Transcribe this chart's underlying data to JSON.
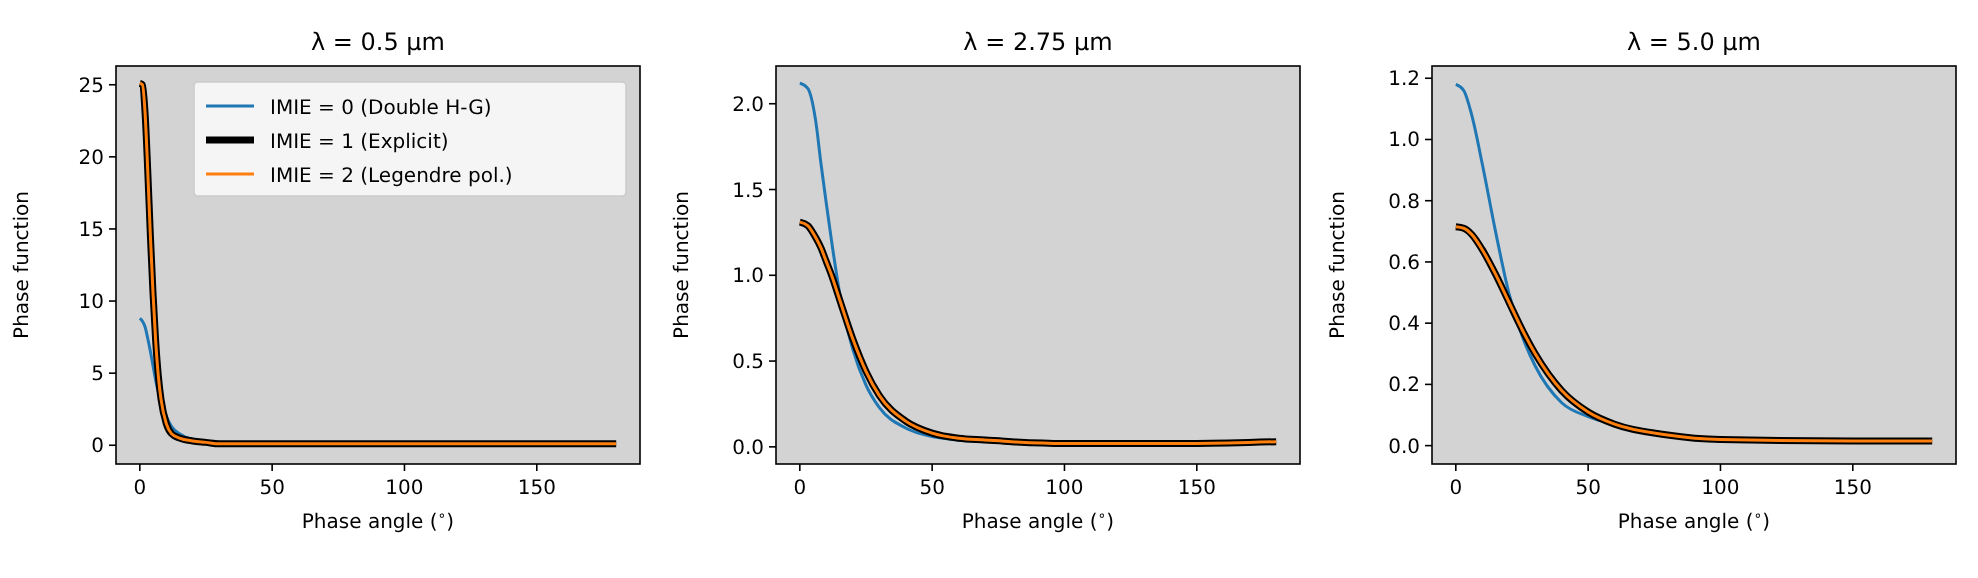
{
  "chart_data": [
    {
      "type": "line",
      "title": "λ = 0.5 μm",
      "xlabel": "Phase angle ($^{∘}$)",
      "ylabel": "Phase function",
      "xlim": [
        -9,
        189
      ],
      "ylim": [
        -1.3,
        26.3
      ],
      "xticks": [
        0,
        50,
        100,
        150
      ],
      "yticks": [
        0,
        5,
        10,
        15,
        20,
        25
      ],
      "legend": "top right",
      "grid": false,
      "x": [
        0,
        1,
        2,
        3,
        4,
        5,
        6,
        7,
        8,
        10,
        12,
        15,
        20,
        25,
        30,
        40,
        50,
        60,
        80,
        100,
        150,
        180
      ],
      "series": [
        {
          "name": "IMIE = 0 (Double H-G)",
          "color": "#1f77b4",
          "values": [
            8.8,
            8.6,
            8.2,
            7.4,
            6.5,
            5.5,
            4.5,
            3.7,
            3.0,
            2.0,
            1.3,
            0.8,
            0.4,
            0.3,
            null,
            null,
            null,
            null,
            null,
            null,
            null,
            null
          ]
        },
        {
          "name": "IMIE = 1 (Explicit)",
          "color": "#000000",
          "values": [
            25.1,
            25.0,
            23,
            19,
            14.5,
            10.5,
            7.2,
            4.8,
            3.2,
            1.5,
            0.8,
            0.5,
            0.3,
            0.2,
            0.1,
            0.1,
            0.1,
            0.1,
            0.1,
            0.1,
            0.1,
            0.1
          ]
        },
        {
          "name": "IMIE = 2 (Legendre pol.)",
          "color": "#ff7f0e",
          "values": [
            25.1,
            25.0,
            23,
            19,
            14.5,
            10.5,
            7.2,
            4.8,
            3.2,
            1.5,
            0.8,
            0.5,
            0.3,
            0.2,
            0.1,
            0.1,
            0.1,
            0.1,
            0.1,
            0.1,
            0.1,
            0.1
          ]
        }
      ]
    },
    {
      "type": "line",
      "title": "λ = 2.75 μm",
      "xlabel": "Phase angle ($^{∘}$)",
      "ylabel": "Phase function",
      "xlim": [
        -9,
        189
      ],
      "ylim": [
        -0.1,
        2.22
      ],
      "xticks": [
        0,
        50,
        100,
        150
      ],
      "yticks": [
        {
          "value": 0,
          "label": "0.0"
        },
        {
          "value": 0.5,
          "label": "0.5"
        },
        {
          "value": 1,
          "label": "1.0"
        },
        {
          "value": 1.5,
          "label": "1.5"
        },
        {
          "value": 2,
          "label": "2.0"
        }
      ],
      "grid": false,
      "x": [
        0,
        3,
        6,
        8,
        10,
        12,
        15,
        20,
        25,
        30,
        40,
        50,
        60,
        70,
        80,
        100,
        150,
        180
      ],
      "series": [
        {
          "color": "#1f77b4",
          "values": [
            2.12,
            2.09,
            1.9,
            1.65,
            1.42,
            1.2,
            0.9,
            0.57,
            0.36,
            0.23,
            0.11,
            0.06,
            0.04,
            0.03,
            null,
            null,
            null,
            null
          ]
        },
        {
          "color": "#000000",
          "values": [
            1.31,
            1.29,
            1.22,
            1.16,
            1.08,
            1.0,
            0.86,
            0.63,
            0.44,
            0.3,
            0.15,
            0.08,
            0.05,
            0.04,
            0.03,
            0.02,
            0.02,
            0.03
          ]
        },
        {
          "color": "#ff7f0e",
          "values": [
            1.31,
            1.29,
            1.22,
            1.16,
            1.08,
            1.0,
            0.86,
            0.63,
            0.44,
            0.3,
            0.15,
            0.08,
            0.05,
            0.04,
            0.03,
            0.02,
            0.02,
            0.03
          ]
        }
      ]
    },
    {
      "type": "line",
      "title": "λ = 5.0 μm",
      "xlabel": "Phase angle ($^{∘}$)",
      "ylabel": "Phase function",
      "xlim": [
        -9,
        189
      ],
      "ylim": [
        -0.06,
        1.24
      ],
      "xticks": [
        0,
        50,
        100,
        150
      ],
      "yticks": [
        {
          "value": 0,
          "label": "0.0"
        },
        {
          "value": 0.2,
          "label": "0.2"
        },
        {
          "value": 0.4,
          "label": "0.4"
        },
        {
          "value": 0.6,
          "label": "0.6"
        },
        {
          "value": 0.8,
          "label": "0.8"
        },
        {
          "value": 1,
          "label": "1.0"
        },
        {
          "value": 1.2,
          "label": "1.2"
        }
      ],
      "grid": false,
      "x": [
        0,
        3,
        6,
        10,
        15,
        20,
        25,
        30,
        40,
        50,
        60,
        80,
        100,
        150,
        180
      ],
      "series": [
        {
          "color": "#1f77b4",
          "values": [
            1.18,
            1.16,
            1.08,
            0.92,
            0.7,
            0.5,
            0.36,
            0.26,
            0.14,
            0.095,
            0.07,
            0.04,
            null,
            null,
            null
          ]
        },
        {
          "color": "#000000",
          "values": [
            0.715,
            0.71,
            0.69,
            0.64,
            0.56,
            0.47,
            0.38,
            0.3,
            0.18,
            0.11,
            0.07,
            0.035,
            0.02,
            0.015,
            0.015
          ]
        },
        {
          "color": "#ff7f0e",
          "values": [
            0.715,
            0.71,
            0.69,
            0.64,
            0.56,
            0.47,
            0.38,
            0.3,
            0.18,
            0.11,
            0.07,
            0.035,
            0.02,
            0.015,
            0.015
          ]
        }
      ]
    }
  ]
}
